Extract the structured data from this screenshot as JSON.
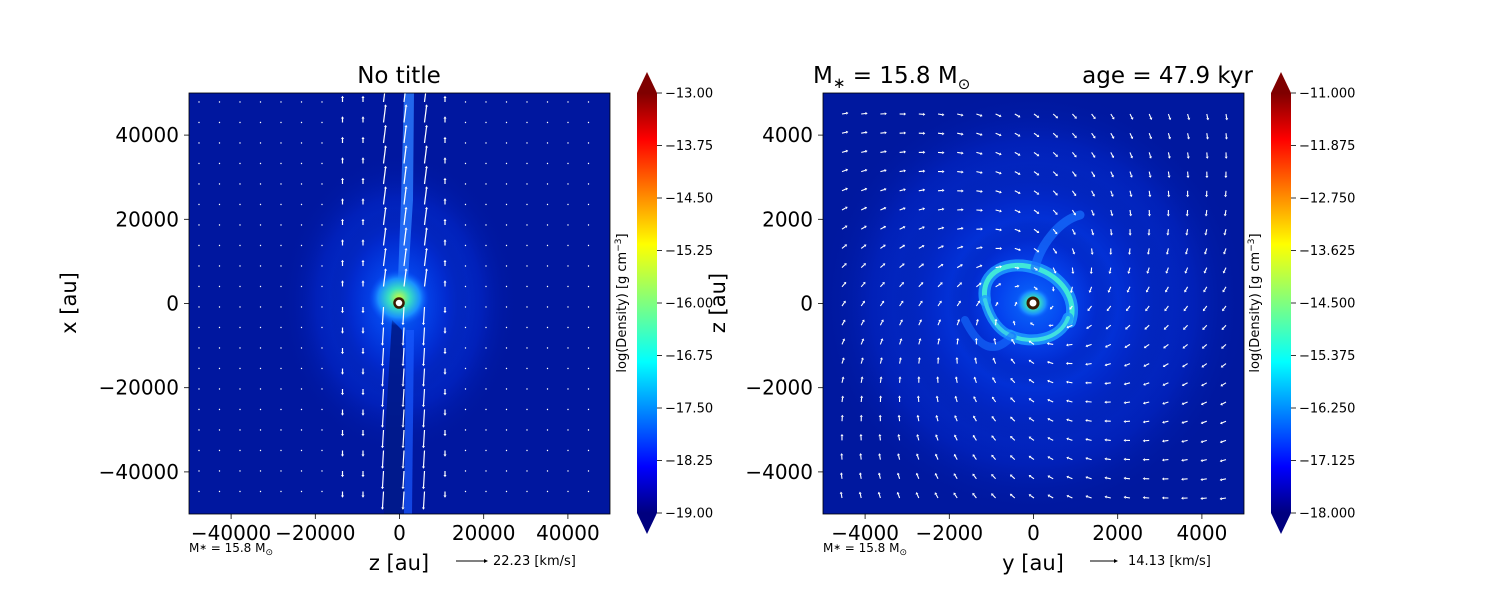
{
  "colors": {
    "background_low": "#00179f",
    "colormap": [
      "#00007f",
      "#0000ff",
      "#007fff",
      "#00ffff",
      "#7fff7f",
      "#ffff00",
      "#ff7f00",
      "#ff0000",
      "#7f0000"
    ],
    "arrows": "#ffffff",
    "star": "#3a1a00"
  },
  "chart_data": [
    {
      "type": "heatmap",
      "title": "No title",
      "xlabel": "z [au]",
      "ylabel": "x [au]",
      "xlim": [
        -50000,
        50000
      ],
      "ylim": [
        -50000,
        50000
      ],
      "xticks": [
        -40000,
        -20000,
        0,
        20000,
        40000
      ],
      "yticks": [
        -40000,
        -20000,
        0,
        20000,
        40000
      ],
      "xtick_labels": [
        "−40000",
        "−20000",
        "0",
        "20000",
        "40000"
      ],
      "ytick_labels": [
        "−40000",
        "−20000",
        "0",
        "20000",
        "40000"
      ],
      "colorbar": {
        "label": "log(Density) [g cm",
        "label_exp": "−3",
        "label_end": "]",
        "range": [
          -19.0,
          -13.0
        ],
        "ticks": [
          "−13.00",
          "−13.75",
          "−14.50",
          "−15.25",
          "−16.00",
          "−16.75",
          "−17.50",
          "−18.25",
          "−19.00"
        ]
      },
      "mass_note": "M",
      "mass_sub": "∗",
      "mass_value": " = 15.8 M",
      "mass_sun": "⊙",
      "arrow_scale_label": "22.23 [km/s]",
      "star_position": [
        0,
        0
      ],
      "features": "bipolar outflow along x axis, dense core at origin"
    },
    {
      "type": "heatmap",
      "title_left": "M",
      "title_left_sub": "∗",
      "title_left_value": " = 15.8 M",
      "title_left_sun": "⊙",
      "title_right": "age = 47.9 kyr",
      "xlabel": "y [au]",
      "ylabel": "z [au]",
      "xlim": [
        -5000,
        5000
      ],
      "ylim": [
        -5000,
        5000
      ],
      "xticks": [
        -4000,
        -2000,
        0,
        2000,
        4000
      ],
      "yticks": [
        -4000,
        -2000,
        0,
        2000,
        4000
      ],
      "xtick_labels": [
        "−4000",
        "−2000",
        "0",
        "2000",
        "4000"
      ],
      "ytick_labels": [
        "−4000",
        "−2000",
        "0",
        "2000",
        "4000"
      ],
      "colorbar": {
        "label": "log(Density) [g cm",
        "label_exp": "−3",
        "label_end": "]",
        "range": [
          -18.0,
          -11.0
        ],
        "ticks": [
          "−11.000",
          "−11.875",
          "−12.750",
          "−13.625",
          "−14.500",
          "−15.375",
          "−16.250",
          "−17.125",
          "−18.000"
        ]
      },
      "mass_note": "M",
      "mass_sub": "∗",
      "mass_value": " = 15.8 M",
      "mass_sun": "⊙",
      "arrow_scale_label": "14.13 [km/s]",
      "star_position": [
        0,
        0
      ],
      "features": "spiral disk structure around central star"
    }
  ]
}
